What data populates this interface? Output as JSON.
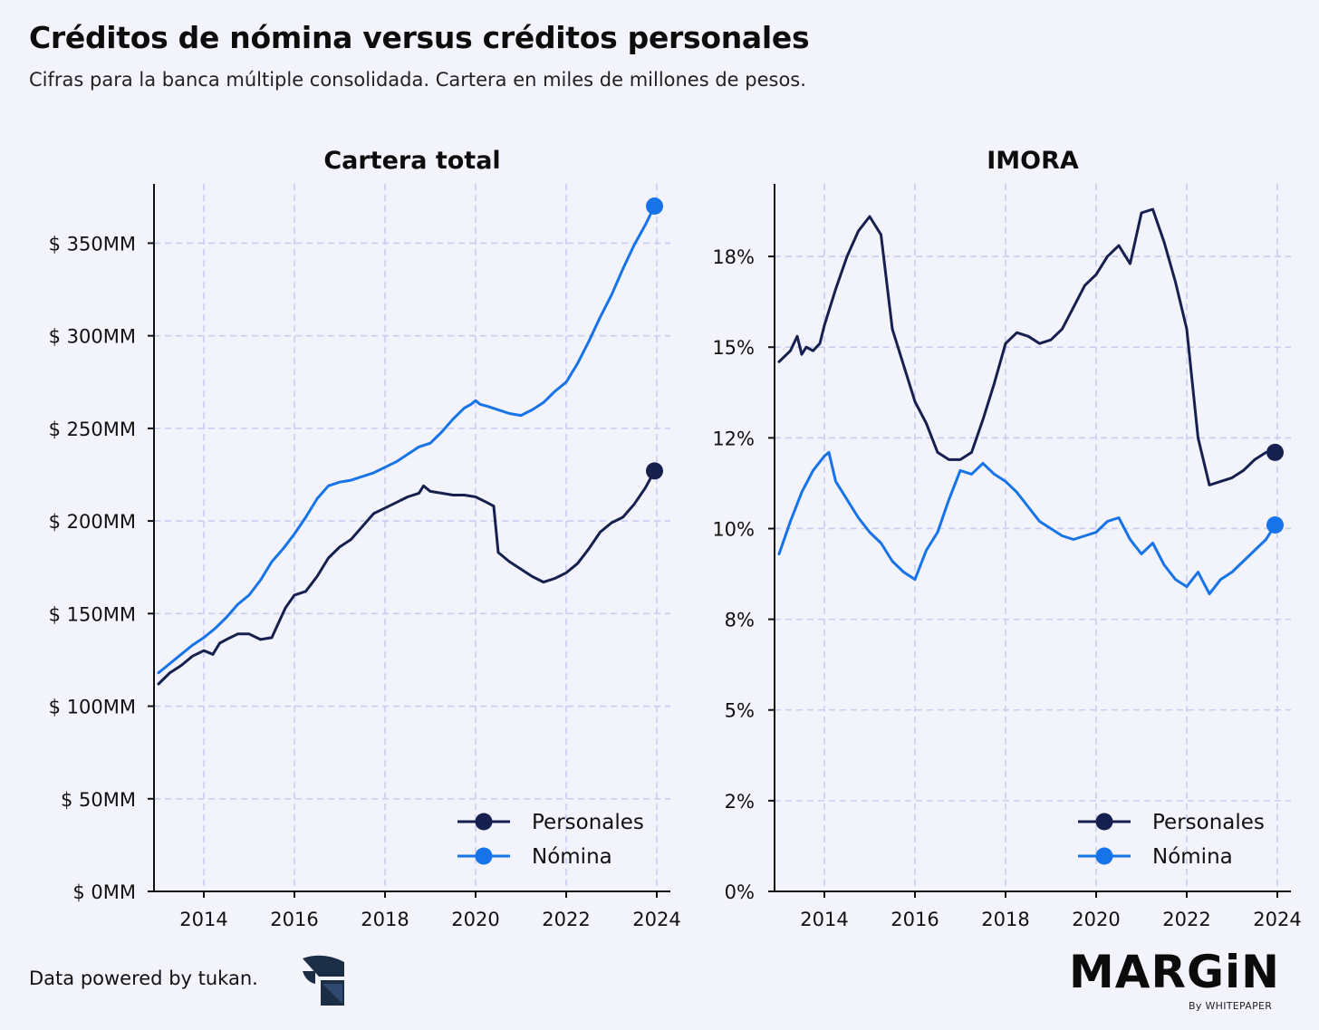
{
  "header": {
    "title": "Créditos de nómina versus créditos personales",
    "subtitle": "Cifras para la banca múltiple consolidada. Cartera en miles de millones de pesos."
  },
  "footer": {
    "source": "Data powered by tukan.",
    "brand": "MARGiN",
    "brand_sub": "By WHITEPAPER"
  },
  "colors": {
    "personales": "#15204e",
    "nomina": "#1673e8",
    "grid": "#c9cdf0",
    "background": "#f3f3fc"
  },
  "chart_data": [
    {
      "type": "line",
      "title": "Cartera total",
      "xlim": [
        2012.9,
        2024.3
      ],
      "ylim": [
        0,
        382
      ],
      "xticks": [
        2014,
        2016,
        2018,
        2020,
        2022,
        2024
      ],
      "xtick_labels": [
        "2014",
        "2016",
        "2018",
        "2020",
        "2022",
        "2024"
      ],
      "yticks": [
        0,
        50,
        100,
        150,
        200,
        250,
        300,
        350
      ],
      "ytick_labels": [
        "$ 0MM",
        "$ 50MM",
        "$ 100MM",
        "$ 150MM",
        "$ 200MM",
        "$ 250MM",
        "$ 300MM",
        "$ 350MM"
      ],
      "grid": true,
      "legend": "bottom-right",
      "series": [
        {
          "name": "Personales",
          "color": "#15204e",
          "x": [
            2013.0,
            2013.25,
            2013.5,
            2013.75,
            2014.0,
            2014.2,
            2014.35,
            2014.5,
            2014.75,
            2015.0,
            2015.25,
            2015.5,
            2015.65,
            2015.8,
            2016.0,
            2016.25,
            2016.5,
            2016.75,
            2017.0,
            2017.25,
            2017.5,
            2017.75,
            2018.0,
            2018.25,
            2018.5,
            2018.75,
            2018.85,
            2019.0,
            2019.25,
            2019.5,
            2019.75,
            2020.0,
            2020.25,
            2020.4,
            2020.5,
            2020.75,
            2021.0,
            2021.25,
            2021.5,
            2021.75,
            2022.0,
            2022.25,
            2022.5,
            2022.75,
            2023.0,
            2023.25,
            2023.5,
            2023.75,
            2023.95
          ],
          "y": [
            112,
            118,
            122,
            127,
            130,
            128,
            134,
            136,
            139,
            139,
            136,
            137,
            145,
            153,
            160,
            162,
            170,
            180,
            186,
            190,
            197,
            204,
            207,
            210,
            213,
            215,
            219,
            216,
            215,
            214,
            214,
            213,
            210,
            208,
            183,
            178,
            174,
            170,
            167,
            169,
            172,
            177,
            185,
            194,
            199,
            202,
            209,
            218,
            227
          ]
        },
        {
          "name": "Nómina",
          "color": "#1673e8",
          "x": [
            2013.0,
            2013.25,
            2013.5,
            2013.75,
            2014.0,
            2014.25,
            2014.5,
            2014.75,
            2015.0,
            2015.25,
            2015.5,
            2015.75,
            2016.0,
            2016.25,
            2016.5,
            2016.75,
            2017.0,
            2017.25,
            2017.5,
            2017.75,
            2018.0,
            2018.25,
            2018.5,
            2018.75,
            2019.0,
            2019.25,
            2019.5,
            2019.75,
            2019.9,
            2020.0,
            2020.1,
            2020.25,
            2020.5,
            2020.75,
            2021.0,
            2021.25,
            2021.5,
            2021.75,
            2022.0,
            2022.25,
            2022.5,
            2022.75,
            2023.0,
            2023.25,
            2023.5,
            2023.75,
            2023.95
          ],
          "y": [
            118,
            123,
            128,
            133,
            137,
            142,
            148,
            155,
            160,
            168,
            178,
            185,
            193,
            202,
            212,
            219,
            221,
            222,
            224,
            226,
            229,
            232,
            236,
            240,
            242,
            248,
            255,
            261,
            263,
            265,
            263,
            262,
            260,
            258,
            257,
            260,
            264,
            270,
            275,
            285,
            297,
            310,
            322,
            336,
            349,
            360,
            370
          ]
        }
      ]
    },
    {
      "type": "line",
      "title": "IMORA",
      "xlim": [
        2012.9,
        2024.3
      ],
      "ylim": [
        0,
        19.5
      ],
      "xticks": [
        2014,
        2016,
        2018,
        2020,
        2022,
        2024
      ],
      "xtick_labels": [
        "2014",
        "2016",
        "2018",
        "2020",
        "2022",
        "2024"
      ],
      "yticks": [
        0,
        2.5,
        5,
        7.5,
        10,
        12.5,
        15,
        17.5
      ],
      "ytick_labels": [
        "0%",
        "2%",
        "5%",
        "8%",
        "10%",
        "12%",
        "15%",
        "18%"
      ],
      "grid": true,
      "legend": "bottom-right",
      "series": [
        {
          "name": "Personales",
          "color": "#15204e",
          "x": [
            2013.0,
            2013.25,
            2013.4,
            2013.5,
            2013.6,
            2013.75,
            2013.9,
            2014.0,
            2014.25,
            2014.5,
            2014.75,
            2015.0,
            2015.25,
            2015.5,
            2015.75,
            2016.0,
            2016.25,
            2016.5,
            2016.75,
            2017.0,
            2017.25,
            2017.5,
            2017.75,
            2018.0,
            2018.25,
            2018.5,
            2018.75,
            2019.0,
            2019.25,
            2019.5,
            2019.75,
            2020.0,
            2020.25,
            2020.5,
            2020.75,
            2021.0,
            2021.25,
            2021.5,
            2021.75,
            2022.0,
            2022.25,
            2022.5,
            2022.75,
            2023.0,
            2023.25,
            2023.5,
            2023.75,
            2023.95
          ],
          "y": [
            14.6,
            14.9,
            15.3,
            14.8,
            15.0,
            14.9,
            15.1,
            15.6,
            16.6,
            17.5,
            18.2,
            18.6,
            18.1,
            15.5,
            14.5,
            13.5,
            12.9,
            12.1,
            11.9,
            11.9,
            12.1,
            13.0,
            14.0,
            15.1,
            15.4,
            15.3,
            15.1,
            15.2,
            15.5,
            16.1,
            16.7,
            17.0,
            17.5,
            17.8,
            17.3,
            18.7,
            18.8,
            17.9,
            16.8,
            15.5,
            12.5,
            11.2,
            11.3,
            11.4,
            11.6,
            11.9,
            12.1,
            12.1
          ]
        },
        {
          "name": "Nómina",
          "color": "#1673e8",
          "x": [
            2013.0,
            2013.25,
            2013.5,
            2013.75,
            2014.0,
            2014.1,
            2014.25,
            2014.5,
            2014.75,
            2015.0,
            2015.25,
            2015.5,
            2015.75,
            2016.0,
            2016.25,
            2016.5,
            2016.75,
            2017.0,
            2017.25,
            2017.5,
            2017.75,
            2018.0,
            2018.25,
            2018.5,
            2018.75,
            2019.0,
            2019.25,
            2019.5,
            2019.75,
            2020.0,
            2020.25,
            2020.5,
            2020.75,
            2021.0,
            2021.25,
            2021.5,
            2021.75,
            2022.0,
            2022.25,
            2022.5,
            2022.75,
            2023.0,
            2023.25,
            2023.5,
            2023.75,
            2023.95
          ],
          "y": [
            9.3,
            10.2,
            11.0,
            11.6,
            12.0,
            12.1,
            11.3,
            10.8,
            10.3,
            9.9,
            9.6,
            9.1,
            8.8,
            8.6,
            9.4,
            9.9,
            10.8,
            11.6,
            11.5,
            11.8,
            11.5,
            11.3,
            11.0,
            10.6,
            10.2,
            10.0,
            9.8,
            9.7,
            9.8,
            9.9,
            10.2,
            10.3,
            9.7,
            9.3,
            9.6,
            9.0,
            8.6,
            8.4,
            8.8,
            8.2,
            8.6,
            8.8,
            9.1,
            9.4,
            9.7,
            10.1
          ]
        }
      ]
    }
  ]
}
